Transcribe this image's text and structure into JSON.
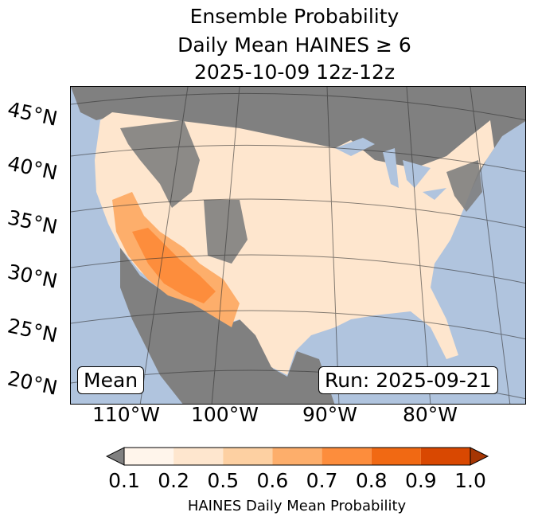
{
  "title": [
    "Ensemble Probability",
    "Daily Mean HAINES ≥ 6",
    "2025-10-09 12z-12z"
  ],
  "map": {
    "lat_labels": [
      "45°N",
      "40°N",
      "35°N",
      "30°N",
      "25°N",
      "20°N"
    ],
    "lon_labels": [
      "110°W",
      "100°W",
      "90°W",
      "80°W"
    ],
    "stat_label": "Mean",
    "run_label": "Run: 2025-09-21",
    "colors": {
      "ocean": "#b0c4de",
      "land_masked": "#808080",
      "lakes": "#b0c4de"
    }
  },
  "colorbar": {
    "ticks": [
      "0.1",
      "0.2",
      "0.5",
      "0.6",
      "0.7",
      "0.8",
      "0.9",
      "1.0"
    ],
    "colors": [
      "#fff5eb",
      "#fee6ce",
      "#fdd0a2",
      "#fdae6b",
      "#fd8d3c",
      "#f16913",
      "#d94801"
    ],
    "under_color": "#808080",
    "over_color": "#a63603",
    "label": "HAINES Daily Mean Probability"
  }
}
